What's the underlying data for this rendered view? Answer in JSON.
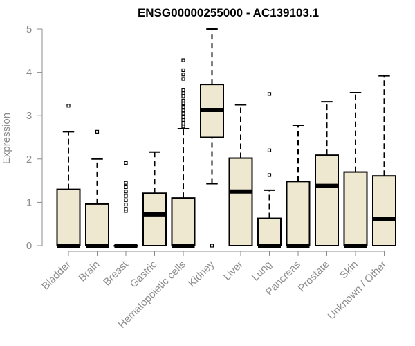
{
  "chart_data": {
    "type": "boxplot",
    "title": "ENSG00000255000 - AC139103.1",
    "xlabel": "",
    "ylabel": "Expression",
    "ylim": [
      0,
      5
    ],
    "yticks": [
      0,
      1,
      2,
      3,
      4,
      5
    ],
    "grid": false,
    "colors": {
      "box_fill": "#efe8d0",
      "box_stroke": "#000000",
      "axis": "#8c8c8c",
      "outlier": "#000000"
    },
    "categories": [
      "Bladder",
      "Brain",
      "Breast",
      "Gastric",
      "Hematopoietic cells",
      "Kidney",
      "Liver",
      "Lung",
      "Pancreas",
      "Prostate",
      "Skin",
      "Unknown / Other"
    ],
    "boxes": [
      {
        "category": "Bladder",
        "min": 0,
        "q1": 0,
        "median": 0,
        "q3": 1.3,
        "max": 2.63,
        "outliers": [
          3.23
        ]
      },
      {
        "category": "Brain",
        "min": 0,
        "q1": 0,
        "median": 0,
        "q3": 0.96,
        "max": 2.0,
        "outliers": [
          2.63
        ]
      },
      {
        "category": "Breast",
        "min": 0,
        "q1": 0,
        "median": 0,
        "q3": 0,
        "max": 0,
        "outliers": [
          0.8,
          0.85,
          0.95,
          1.05,
          1.15,
          1.25,
          1.35,
          1.45,
          1.91
        ]
      },
      {
        "category": "Gastric",
        "min": 0,
        "q1": 0,
        "median": 0.72,
        "q3": 1.21,
        "max": 2.16,
        "outliers": []
      },
      {
        "category": "Hematopoietic cells",
        "min": 0,
        "q1": 0,
        "median": 0,
        "q3": 1.1,
        "max": 2.7,
        "outliers": [
          2.75,
          2.82,
          2.9,
          2.97,
          3.05,
          3.12,
          3.2,
          3.28,
          3.35,
          3.45,
          3.52,
          3.6,
          3.85,
          3.95,
          4.05,
          4.28
        ]
      },
      {
        "category": "Kidney",
        "min": 1.43,
        "q1": 2.5,
        "median": 3.13,
        "q3": 3.72,
        "max": 5.0,
        "outliers": [
          0.0
        ]
      },
      {
        "category": "Liver",
        "min": 0,
        "q1": 0,
        "median": 1.25,
        "q3": 2.02,
        "max": 3.25,
        "outliers": []
      },
      {
        "category": "Lung",
        "min": 0,
        "q1": 0,
        "median": 0,
        "q3": 0.63,
        "max": 1.28,
        "outliers": [
          1.63,
          2.2,
          3.5
        ]
      },
      {
        "category": "Pancreas",
        "min": 0,
        "q1": 0,
        "median": 0,
        "q3": 1.48,
        "max": 2.78,
        "outliers": []
      },
      {
        "category": "Prostate",
        "min": 0,
        "q1": 0,
        "median": 1.38,
        "q3": 2.09,
        "max": 3.32,
        "outliers": []
      },
      {
        "category": "Skin",
        "min": 0,
        "q1": 0,
        "median": 0,
        "q3": 1.7,
        "max": 3.53,
        "outliers": []
      },
      {
        "category": "Unknown / Other",
        "min": 0,
        "q1": 0,
        "median": 0.62,
        "q3": 1.61,
        "max": 3.92,
        "outliers": []
      }
    ]
  }
}
